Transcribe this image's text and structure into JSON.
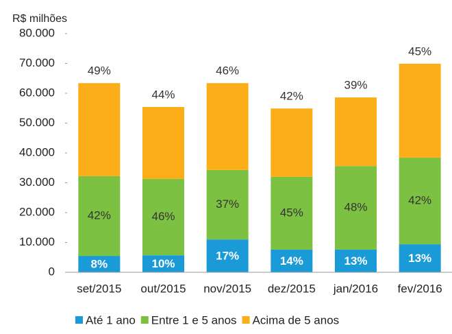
{
  "chart_data": {
    "type": "stacked_bar",
    "y_axis_label": "R$ milhões",
    "categories": [
      "set/2015",
      "out/2015",
      "nov/2015",
      "dez/2015",
      "jan/2016",
      "fev/2016"
    ],
    "series": [
      {
        "name": "Até 1 ano",
        "color": "#1a9ad6",
        "values": [
          5500,
          5700,
          11000,
          7600,
          7600,
          9400
        ],
        "percent_labels": [
          "8%",
          "10%",
          "17%",
          "14%",
          "13%",
          "13%"
        ]
      },
      {
        "name": "Entre 1 e 5 anos",
        "color": "#7dc142",
        "values": [
          26700,
          25600,
          23300,
          24400,
          28000,
          29000
        ],
        "percent_labels": [
          "42%",
          "46%",
          "37%",
          "45%",
          "48%",
          "42%"
        ]
      },
      {
        "name": "Acima de 5 anos",
        "color": "#fbae17",
        "values": [
          31200,
          24100,
          29100,
          22900,
          23000,
          31500
        ],
        "percent_labels": [
          "49%",
          "44%",
          "46%",
          "42%",
          "39%",
          "45%"
        ]
      }
    ],
    "ylim": [
      0,
      80000
    ],
    "yticks": [
      0,
      {
        "value": 10000,
        "label": "10.000"
      },
      {
        "value": 20000,
        "label": "20.000"
      },
      {
        "value": 30000,
        "label": "30.000"
      },
      {
        "value": 40000,
        "label": "40.000"
      },
      {
        "value": 50000,
        "label": "50.000"
      },
      {
        "value": 60000,
        "label": "60.000"
      },
      {
        "value": 70000,
        "label": "70.000"
      },
      {
        "value": 80000,
        "label": "80.000"
      }
    ],
    "legend": "bottom"
  }
}
